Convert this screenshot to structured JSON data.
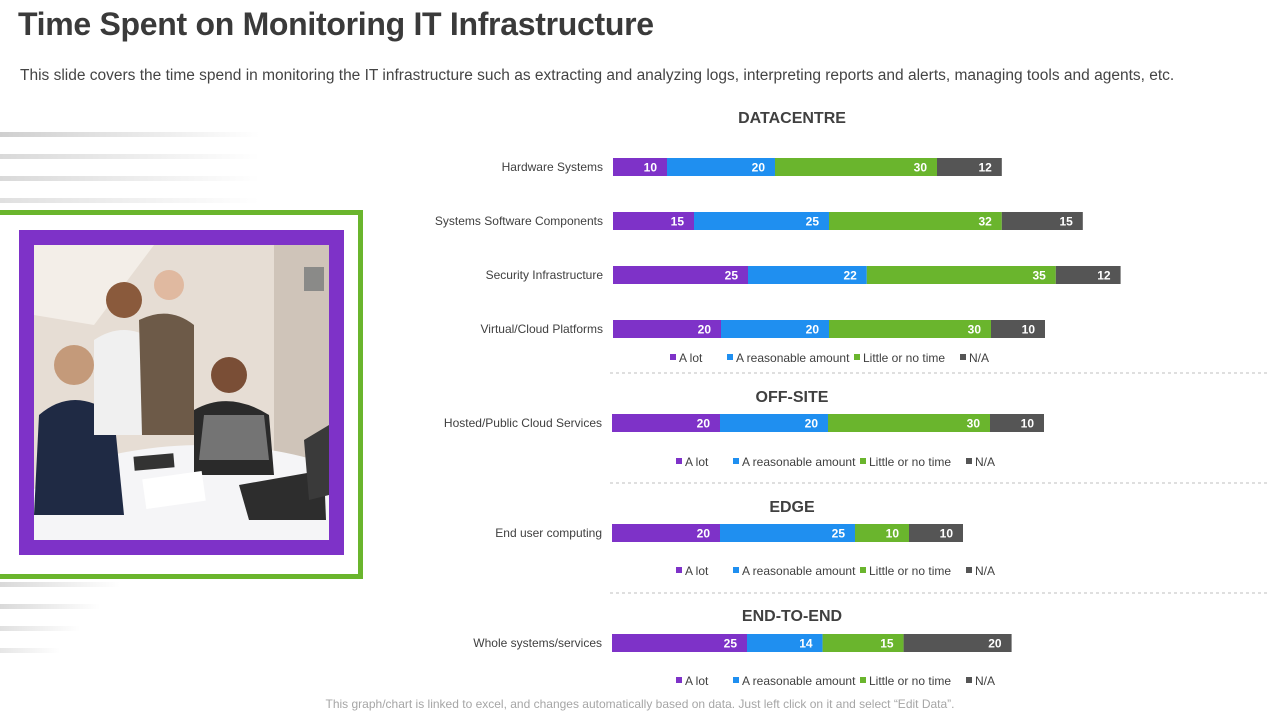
{
  "header": {
    "title": "Time Spent on Monitoring IT Infrastructure",
    "subtitle": "This slide covers the time spend in monitoring the IT infrastructure  such as extracting and analyzing  logs, interpreting reports and alerts, managing tools and agents, etc."
  },
  "footer": {
    "note": "This graph/chart is linked to excel, and changes automatically based on data. Just left click on it and select “Edit Data”."
  },
  "photo": {
    "description_icon": "team-meeting-photo"
  },
  "colors": {
    "a_lot": "#7e32c8",
    "reasonable": "#1f8ff0",
    "little": "#6ab52d",
    "na": "#555555",
    "frame_green": "#6ab52d"
  },
  "chart_data": [
    {
      "type": "bar",
      "orientation": "horizontal",
      "stacked": true,
      "title": "DATACENTRE",
      "categories": [
        "Hardware Systems",
        "Systems Software Components",
        "Security Infrastructure",
        "Virtual/Cloud Platforms"
      ],
      "series": [
        {
          "name": "A lot",
          "values": [
            10,
            15,
            25,
            20
          ]
        },
        {
          "name": "A reasonable amount",
          "values": [
            20,
            25,
            22,
            20
          ]
        },
        {
          "name": "Little or no time",
          "values": [
            30,
            32,
            35,
            30
          ]
        },
        {
          "name": "N/A",
          "values": [
            12,
            15,
            12,
            10
          ]
        }
      ],
      "legend": "bottom"
    },
    {
      "type": "bar",
      "orientation": "horizontal",
      "stacked": true,
      "title": "OFF-SITE",
      "categories": [
        "Hosted/Public Cloud Services"
      ],
      "series": [
        {
          "name": "A lot",
          "values": [
            20
          ]
        },
        {
          "name": "A reasonable amount",
          "values": [
            20
          ]
        },
        {
          "name": "Little or no time",
          "values": [
            30
          ]
        },
        {
          "name": "N/A",
          "values": [
            10
          ]
        }
      ],
      "legend": "bottom"
    },
    {
      "type": "bar",
      "orientation": "horizontal",
      "stacked": true,
      "title": "EDGE",
      "categories": [
        "End user computing"
      ],
      "series": [
        {
          "name": "A lot",
          "values": [
            20
          ]
        },
        {
          "name": "A reasonable amount",
          "values": [
            25
          ]
        },
        {
          "name": "Little or no time",
          "values": [
            10
          ]
        },
        {
          "name": "N/A",
          "values": [
            10
          ]
        }
      ],
      "legend": "bottom"
    },
    {
      "type": "bar",
      "orientation": "horizontal",
      "stacked": true,
      "title": "END-TO-END",
      "categories": [
        "Whole systems/services"
      ],
      "series": [
        {
          "name": "A lot",
          "values": [
            25
          ]
        },
        {
          "name": "A reasonable amount",
          "values": [
            14
          ]
        },
        {
          "name": "Little or no time",
          "values": [
            15
          ]
        },
        {
          "name": "N/A",
          "values": [
            20
          ]
        }
      ],
      "legend": "bottom"
    }
  ]
}
